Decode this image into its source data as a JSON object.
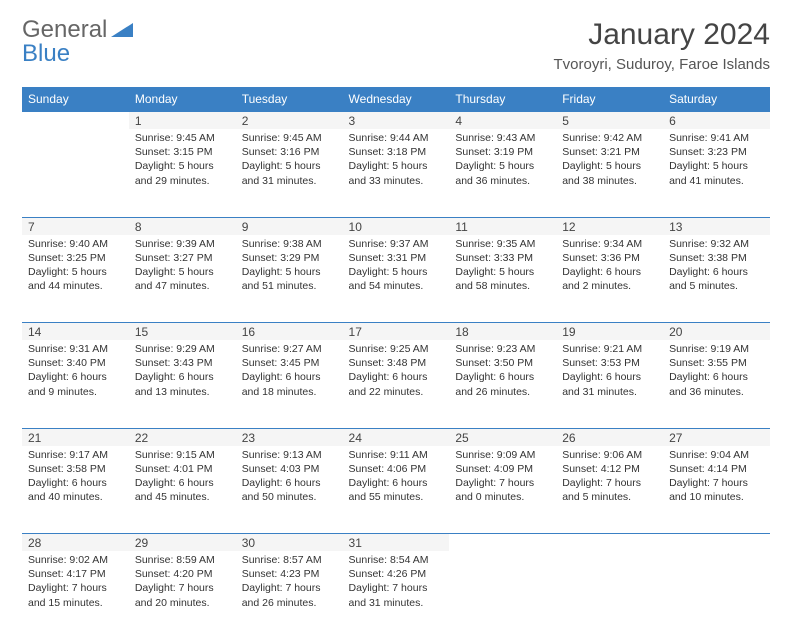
{
  "logo": {
    "text1": "General",
    "text2": "Blue",
    "icon_color": "#3a80c4"
  },
  "title": "January 2024",
  "location": "Tvoroyri, Suduroy, Faroe Islands",
  "colors": {
    "header_bg": "#3a80c4",
    "header_text": "#ffffff",
    "border": "#3a80c4",
    "daynum_bg": "#f5f5f5",
    "text": "#333333"
  },
  "weekdays": [
    "Sunday",
    "Monday",
    "Tuesday",
    "Wednesday",
    "Thursday",
    "Friday",
    "Saturday"
  ],
  "weeks": [
    [
      null,
      {
        "n": "1",
        "sr": "Sunrise: 9:45 AM",
        "ss": "Sunset: 3:15 PM",
        "dl": "Daylight: 5 hours and 29 minutes."
      },
      {
        "n": "2",
        "sr": "Sunrise: 9:45 AM",
        "ss": "Sunset: 3:16 PM",
        "dl": "Daylight: 5 hours and 31 minutes."
      },
      {
        "n": "3",
        "sr": "Sunrise: 9:44 AM",
        "ss": "Sunset: 3:18 PM",
        "dl": "Daylight: 5 hours and 33 minutes."
      },
      {
        "n": "4",
        "sr": "Sunrise: 9:43 AM",
        "ss": "Sunset: 3:19 PM",
        "dl": "Daylight: 5 hours and 36 minutes."
      },
      {
        "n": "5",
        "sr": "Sunrise: 9:42 AM",
        "ss": "Sunset: 3:21 PM",
        "dl": "Daylight: 5 hours and 38 minutes."
      },
      {
        "n": "6",
        "sr": "Sunrise: 9:41 AM",
        "ss": "Sunset: 3:23 PM",
        "dl": "Daylight: 5 hours and 41 minutes."
      }
    ],
    [
      {
        "n": "7",
        "sr": "Sunrise: 9:40 AM",
        "ss": "Sunset: 3:25 PM",
        "dl": "Daylight: 5 hours and 44 minutes."
      },
      {
        "n": "8",
        "sr": "Sunrise: 9:39 AM",
        "ss": "Sunset: 3:27 PM",
        "dl": "Daylight: 5 hours and 47 minutes."
      },
      {
        "n": "9",
        "sr": "Sunrise: 9:38 AM",
        "ss": "Sunset: 3:29 PM",
        "dl": "Daylight: 5 hours and 51 minutes."
      },
      {
        "n": "10",
        "sr": "Sunrise: 9:37 AM",
        "ss": "Sunset: 3:31 PM",
        "dl": "Daylight: 5 hours and 54 minutes."
      },
      {
        "n": "11",
        "sr": "Sunrise: 9:35 AM",
        "ss": "Sunset: 3:33 PM",
        "dl": "Daylight: 5 hours and 58 minutes."
      },
      {
        "n": "12",
        "sr": "Sunrise: 9:34 AM",
        "ss": "Sunset: 3:36 PM",
        "dl": "Daylight: 6 hours and 2 minutes."
      },
      {
        "n": "13",
        "sr": "Sunrise: 9:32 AM",
        "ss": "Sunset: 3:38 PM",
        "dl": "Daylight: 6 hours and 5 minutes."
      }
    ],
    [
      {
        "n": "14",
        "sr": "Sunrise: 9:31 AM",
        "ss": "Sunset: 3:40 PM",
        "dl": "Daylight: 6 hours and 9 minutes."
      },
      {
        "n": "15",
        "sr": "Sunrise: 9:29 AM",
        "ss": "Sunset: 3:43 PM",
        "dl": "Daylight: 6 hours and 13 minutes."
      },
      {
        "n": "16",
        "sr": "Sunrise: 9:27 AM",
        "ss": "Sunset: 3:45 PM",
        "dl": "Daylight: 6 hours and 18 minutes."
      },
      {
        "n": "17",
        "sr": "Sunrise: 9:25 AM",
        "ss": "Sunset: 3:48 PM",
        "dl": "Daylight: 6 hours and 22 minutes."
      },
      {
        "n": "18",
        "sr": "Sunrise: 9:23 AM",
        "ss": "Sunset: 3:50 PM",
        "dl": "Daylight: 6 hours and 26 minutes."
      },
      {
        "n": "19",
        "sr": "Sunrise: 9:21 AM",
        "ss": "Sunset: 3:53 PM",
        "dl": "Daylight: 6 hours and 31 minutes."
      },
      {
        "n": "20",
        "sr": "Sunrise: 9:19 AM",
        "ss": "Sunset: 3:55 PM",
        "dl": "Daylight: 6 hours and 36 minutes."
      }
    ],
    [
      {
        "n": "21",
        "sr": "Sunrise: 9:17 AM",
        "ss": "Sunset: 3:58 PM",
        "dl": "Daylight: 6 hours and 40 minutes."
      },
      {
        "n": "22",
        "sr": "Sunrise: 9:15 AM",
        "ss": "Sunset: 4:01 PM",
        "dl": "Daylight: 6 hours and 45 minutes."
      },
      {
        "n": "23",
        "sr": "Sunrise: 9:13 AM",
        "ss": "Sunset: 4:03 PM",
        "dl": "Daylight: 6 hours and 50 minutes."
      },
      {
        "n": "24",
        "sr": "Sunrise: 9:11 AM",
        "ss": "Sunset: 4:06 PM",
        "dl": "Daylight: 6 hours and 55 minutes."
      },
      {
        "n": "25",
        "sr": "Sunrise: 9:09 AM",
        "ss": "Sunset: 4:09 PM",
        "dl": "Daylight: 7 hours and 0 minutes."
      },
      {
        "n": "26",
        "sr": "Sunrise: 9:06 AM",
        "ss": "Sunset: 4:12 PM",
        "dl": "Daylight: 7 hours and 5 minutes."
      },
      {
        "n": "27",
        "sr": "Sunrise: 9:04 AM",
        "ss": "Sunset: 4:14 PM",
        "dl": "Daylight: 7 hours and 10 minutes."
      }
    ],
    [
      {
        "n": "28",
        "sr": "Sunrise: 9:02 AM",
        "ss": "Sunset: 4:17 PM",
        "dl": "Daylight: 7 hours and 15 minutes."
      },
      {
        "n": "29",
        "sr": "Sunrise: 8:59 AM",
        "ss": "Sunset: 4:20 PM",
        "dl": "Daylight: 7 hours and 20 minutes."
      },
      {
        "n": "30",
        "sr": "Sunrise: 8:57 AM",
        "ss": "Sunset: 4:23 PM",
        "dl": "Daylight: 7 hours and 26 minutes."
      },
      {
        "n": "31",
        "sr": "Sunrise: 8:54 AM",
        "ss": "Sunset: 4:26 PM",
        "dl": "Daylight: 7 hours and 31 minutes."
      },
      null,
      null,
      null
    ]
  ]
}
